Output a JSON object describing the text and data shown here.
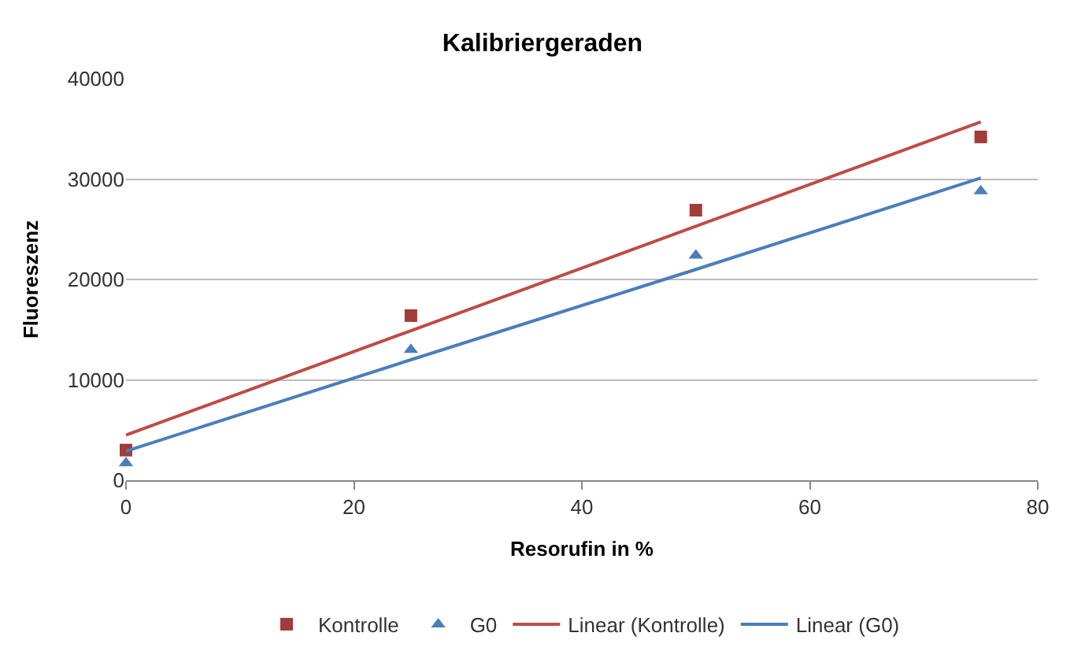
{
  "chart_data": {
    "type": "scatter",
    "title": "Kalibriergeraden",
    "xlabel": "Resorufin in %",
    "ylabel": "Fluoreszenz",
    "x": [
      0,
      25,
      50,
      75
    ],
    "series": [
      {
        "name": "Kontrolle",
        "color": "#a33b3a",
        "values": [
          3000,
          16400,
          26900,
          34200
        ],
        "marker": "square"
      },
      {
        "name": "G0",
        "color": "#4a7ebb",
        "values": [
          1700,
          13000,
          22400,
          28800
        ],
        "marker": "triangle"
      },
      {
        "name": "Linear (Kontrolle)",
        "type": "line",
        "color": "#be4b48",
        "values": [
          4500,
          14900,
          25300,
          35700
        ],
        "marker": "none"
      },
      {
        "name": "Linear (G0)",
        "type": "line",
        "color": "#4a7ebb",
        "values": [
          2900,
          12000,
          21000,
          30100
        ],
        "marker": "none"
      }
    ],
    "xlim": [
      0,
      80
    ],
    "xticks": [
      0,
      20,
      40,
      60,
      80
    ],
    "ylim": [
      0,
      40000
    ],
    "yticks": [
      0,
      10000,
      20000,
      30000,
      40000
    ],
    "grid": "y",
    "legend": "bottom"
  }
}
